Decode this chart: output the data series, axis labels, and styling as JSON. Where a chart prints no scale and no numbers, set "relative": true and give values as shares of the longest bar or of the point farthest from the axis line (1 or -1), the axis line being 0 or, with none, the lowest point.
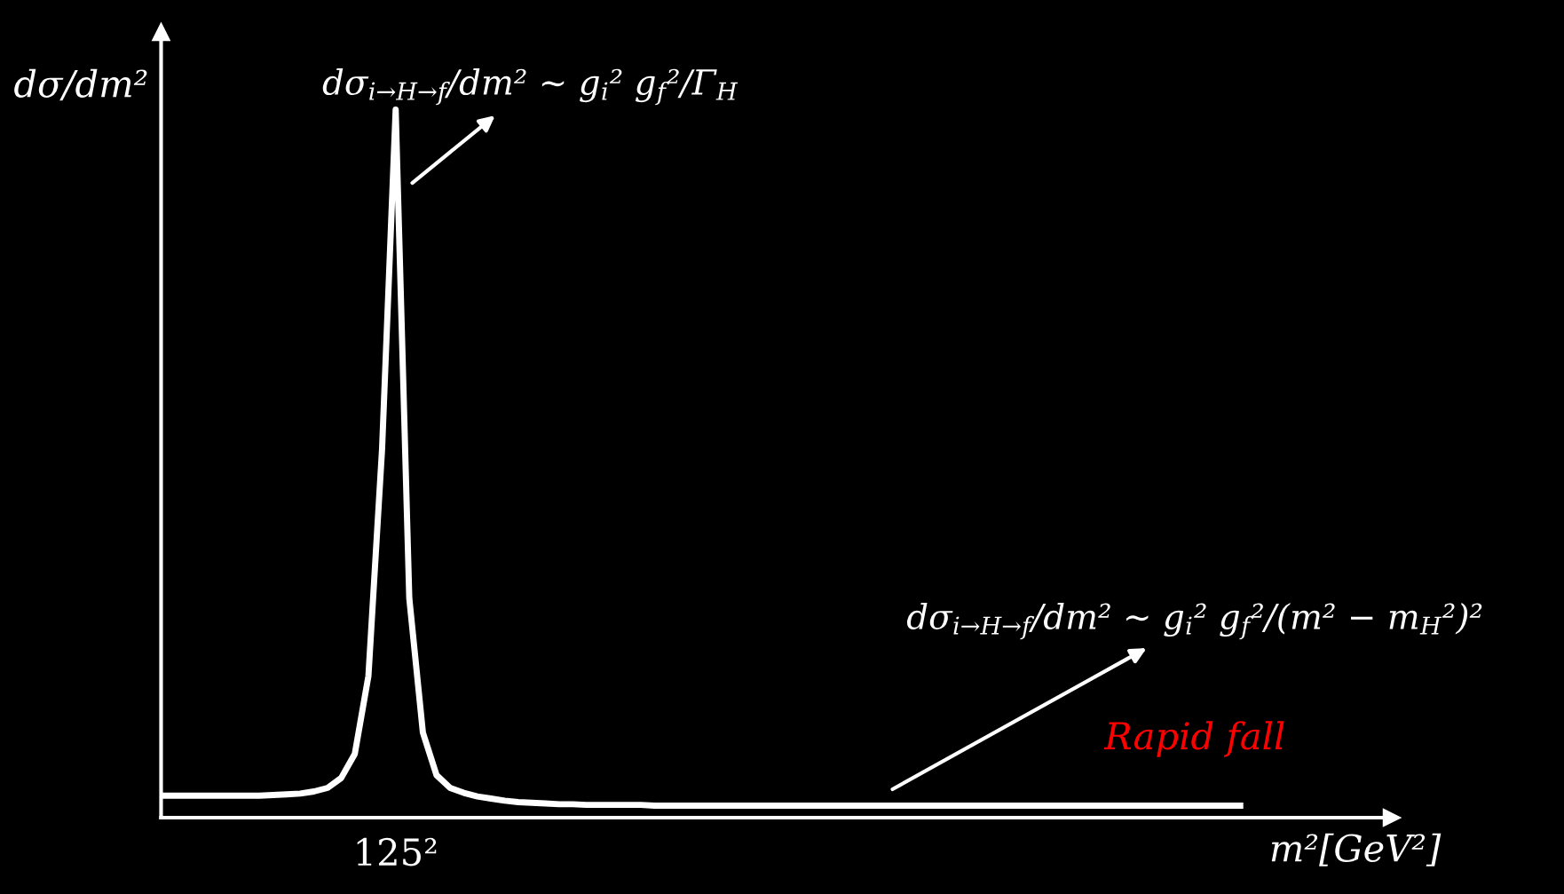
{
  "chart_data": {
    "type": "line",
    "relative": true,
    "xlabel": "m²[GeV²]",
    "ylabel": "dσ/dm²",
    "categories": [
      null,
      null,
      null,
      null,
      null,
      null,
      null,
      null,
      null,
      null,
      null,
      null,
      null,
      null,
      null,
      null,
      null,
      null,
      null,
      null,
      null,
      null,
      null,
      null,
      null,
      null,
      null,
      null,
      null,
      null,
      null,
      null,
      null,
      null,
      null,
      null,
      null,
      null,
      null,
      null,
      null,
      null,
      null,
      null,
      null,
      null,
      null,
      null,
      null,
      null,
      null,
      null,
      null,
      null,
      null,
      null,
      null,
      null,
      null,
      null,
      null,
      null,
      null,
      null,
      null,
      null,
      null,
      null,
      null,
      null,
      null,
      null,
      null,
      null,
      null,
      null,
      null,
      null,
      null,
      null
    ],
    "series": [
      {
        "color": "#ffffff",
        "values": [
          0.031,
          0.031,
          0.031,
          0.031,
          0.031,
          0.031,
          0.031,
          0.031,
          0.032,
          0.033,
          0.034,
          0.037,
          0.042,
          0.056,
          0.09,
          0.2,
          0.52,
          1.0,
          0.31,
          0.12,
          0.06,
          0.042,
          0.035,
          0.03,
          0.027,
          0.024,
          0.022,
          0.021,
          0.02,
          0.019,
          0.019,
          0.018,
          0.018,
          0.018,
          0.018,
          0.018,
          0.017,
          0.017,
          0.017,
          0.017,
          0.017,
          0.017,
          0.017,
          0.017,
          0.017,
          0.017,
          0.017,
          0.017,
          0.017,
          0.017,
          0.017,
          0.017,
          0.017,
          0.017,
          0.017,
          0.017,
          0.017,
          0.017,
          0.017,
          0.017,
          0.017,
          0.017,
          0.017,
          0.017,
          0.017,
          0.017,
          0.017,
          0.017,
          0.017,
          0.017,
          0.017,
          0.017,
          0.017,
          0.017,
          0.017,
          0.017,
          0.017,
          0.017,
          0.017,
          0.017
        ]
      }
    ],
    "annotations": [
      "dσ$_{i→H→f}$/dm² ~ g$_{i}$² g$_{f}$²/Γ$_{H}$",
      "dσ$_{i→H→f}$/dm² ~ g$_{i}$² g$_{f}$²/(m² − m$_{H}$²)²",
      "Rapid fall",
      "125²"
    ],
    "legend": false,
    "marker": "none",
    "line_style": "solid"
  }
}
